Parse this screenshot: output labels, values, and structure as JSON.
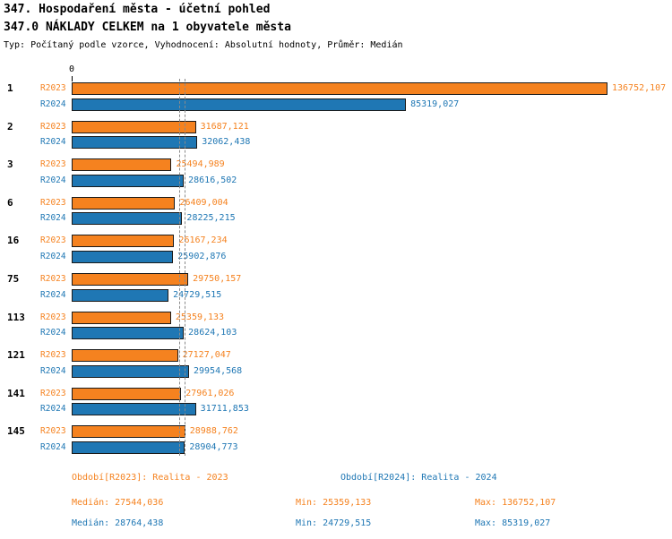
{
  "header": {
    "title": "347. Hospodaření města - účetní pohled",
    "subtitle": "347.0 NÁKLADY CELKEM na 1 obyvatele města",
    "meta": "Typ: Počítaný podle vzorce, Vyhodnocení: Absolutní hodnoty, Průměr: Medián"
  },
  "chart_data": {
    "type": "bar",
    "orientation": "horizontal",
    "title": "347. Hospodaření města - účetní pohled",
    "subtitle": "347.0 NÁKLADY CELKEM na 1 obyvatele města",
    "xlabel": "",
    "ylabel": "",
    "xlim": [
      0,
      136752.107
    ],
    "axis_zero_label": "0",
    "grid": false,
    "categories": [
      "1",
      "2",
      "3",
      "6",
      "16",
      "75",
      "113",
      "121",
      "141",
      "145"
    ],
    "series": [
      {
        "name": "R2023",
        "color": "#f5821f",
        "values": [
          136752.107,
          31687.121,
          25494.989,
          26409.004,
          26167.234,
          29750.157,
          25359.133,
          27127.047,
          27961.026,
          28988.762
        ],
        "value_labels": [
          "136752,107",
          "31687,121",
          "25494,989",
          "26409,004",
          "26167,234",
          "29750,157",
          "25359,133",
          "27127,047",
          "27961,026",
          "28988,762"
        ]
      },
      {
        "name": "R2024",
        "color": "#1f77b4",
        "values": [
          85319.027,
          32062.438,
          28616.502,
          28225.215,
          25902.876,
          24729.515,
          28624.103,
          29954.568,
          31711.853,
          28904.773
        ],
        "value_labels": [
          "85319,027",
          "32062,438",
          "28616,502",
          "28225,215",
          "25902,876",
          "24729,515",
          "28624,103",
          "29954,568",
          "31711,853",
          "28904,773"
        ]
      }
    ],
    "median_lines": [
      {
        "series": "R2023",
        "value": 27544.036
      },
      {
        "series": "R2024",
        "value": 28764.438
      }
    ]
  },
  "footer": {
    "r2023": {
      "period": "Období[R2023]: Realita - 2023",
      "median": "Medián: 27544,036",
      "min": "Min: 25359,133",
      "max": "Max: 136752,107"
    },
    "r2024": {
      "period": "Období[R2024]: Realita - 2024",
      "median": "Medián: 28764,438",
      "min": "Min: 24729,515",
      "max": "Max: 85319,027"
    }
  }
}
